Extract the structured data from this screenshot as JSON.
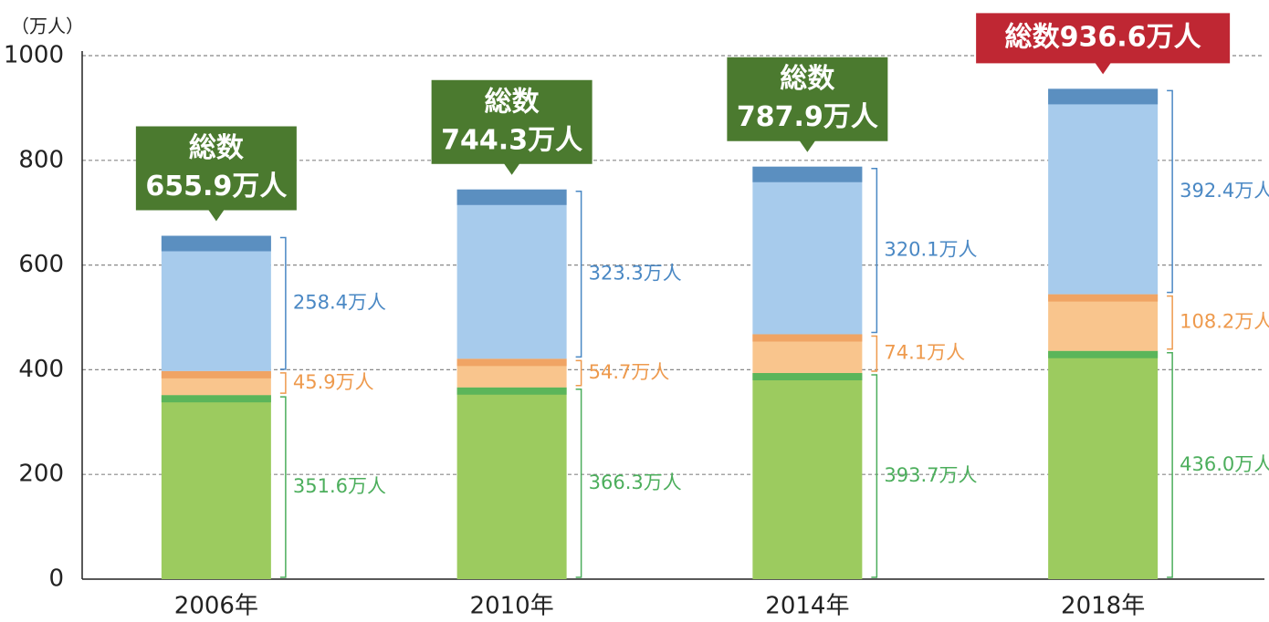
{
  "chart_data": {
    "type": "stacked_bar",
    "y_label": "（万人）",
    "categories": [
      "2006年",
      "2010年",
      "2014年",
      "2018年"
    ],
    "series": [
      {
        "color": "#9ccb5f",
        "edge_color": "#5bb55a",
        "label_color": "#4cae5c",
        "values": [
          351.6,
          366.3,
          393.7,
          436.0
        ],
        "value_labels": [
          "351.6万人",
          "366.3万人",
          "393.7万人",
          "436.0万人"
        ]
      },
      {
        "color": "#f9c58d",
        "edge_color": "#f0a464",
        "label_color": "#ee9a4d",
        "values": [
          45.9,
          54.7,
          74.1,
          108.2
        ],
        "value_labels": [
          "45.9万人",
          "54.7万人",
          "74.1万人",
          "108.2万人"
        ]
      },
      {
        "color": "#a7cbec",
        "edge_color": "#5b8fc0",
        "label_color": "#4a88c4",
        "values": [
          258.4,
          323.3,
          320.1,
          392.4
        ],
        "value_labels": [
          "258.4万人",
          "323.3万人",
          "320.1万人",
          "392.4万人"
        ]
      }
    ],
    "totals": [
      655.9,
      744.3,
      787.9,
      936.6
    ],
    "total_labels": [
      {
        "lines": [
          "総数",
          "655.9万人"
        ],
        "color": "#4b7a2f"
      },
      {
        "lines": [
          "総数",
          "744.3万人"
        ],
        "color": "#4b7a2f"
      },
      {
        "lines": [
          "総数",
          "787.9万人"
        ],
        "color": "#4b7a2f"
      },
      {
        "lines": [
          "総数936.6万人"
        ],
        "color": "#bf2733"
      }
    ],
    "ylim": [
      0,
      1000
    ],
    "yticks": [
      0,
      200,
      400,
      600,
      800,
      1000
    ],
    "grid": true
  }
}
